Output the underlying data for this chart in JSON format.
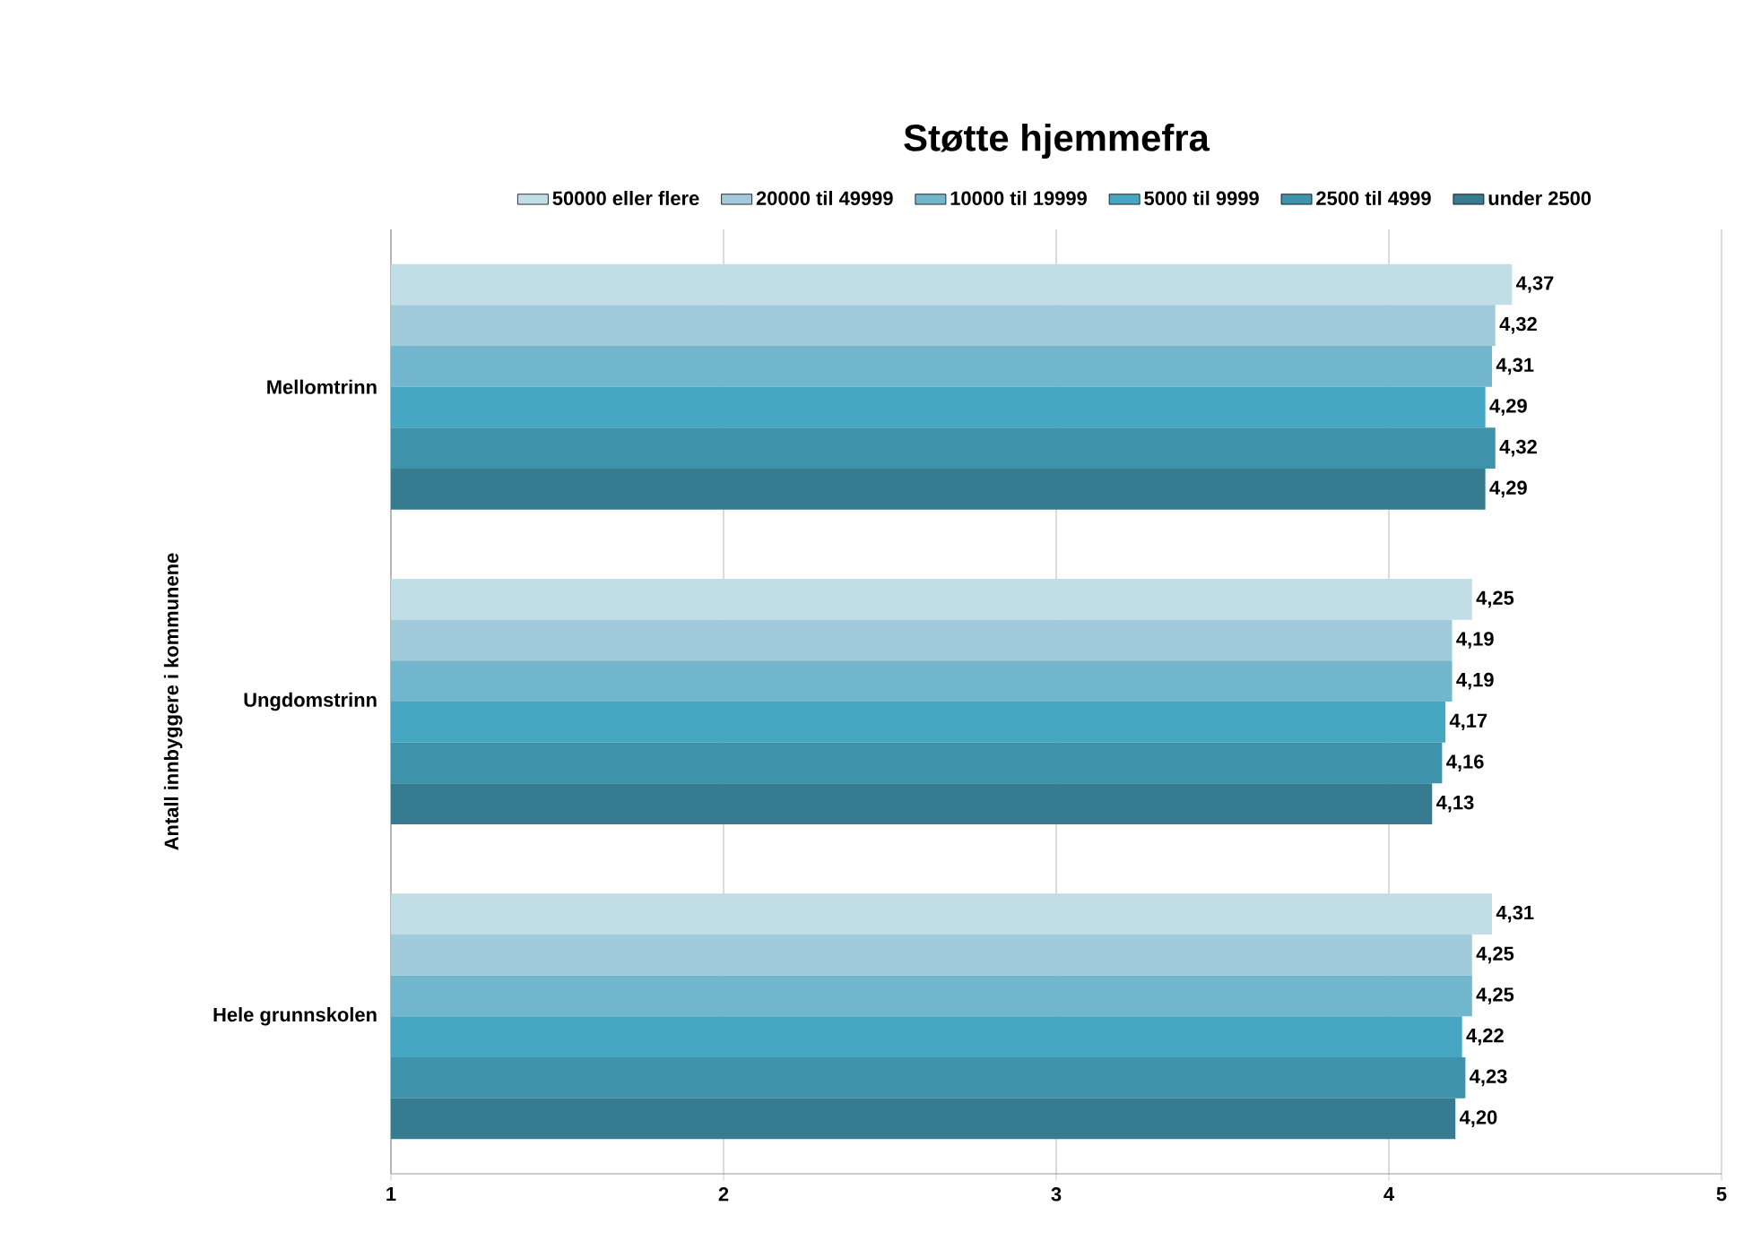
{
  "chart_data": {
    "type": "bar",
    "orientation": "horizontal",
    "title": "Støtte hjemmefra",
    "ylabel": "Antall innbyggere i kommunene",
    "categories": [
      "Mellomtrinn",
      "Ungdomstrinn",
      "Hele grunnskolen"
    ],
    "series": [
      {
        "name": "50000 eller flere",
        "color": "#c1dde6",
        "values": [
          4.37,
          4.25,
          4.31
        ],
        "value_labels": [
          "4,37",
          "4,25",
          "4,31"
        ]
      },
      {
        "name": "20000 til 49999",
        "color": "#a1cadb",
        "values": [
          4.32,
          4.19,
          4.25
        ],
        "value_labels": [
          "4,32",
          "4,19",
          "4,25"
        ]
      },
      {
        "name": "10000 til 19999",
        "color": "#72b6cd",
        "values": [
          4.31,
          4.19,
          4.25
        ],
        "value_labels": [
          "4,31",
          "4,19",
          "4,25"
        ]
      },
      {
        "name": "5000 til 9999",
        "color": "#47a6c1",
        "values": [
          4.29,
          4.17,
          4.22
        ],
        "value_labels": [
          "4,29",
          "4,17",
          "4,22"
        ]
      },
      {
        "name": "2500 til 4999",
        "color": "#3e92a9",
        "values": [
          4.32,
          4.16,
          4.23
        ],
        "value_labels": [
          "4,32",
          "4,16",
          "4,23"
        ]
      },
      {
        "name": "under 2500",
        "color": "#367b90",
        "values": [
          4.29,
          4.13,
          4.2
        ],
        "value_labels": [
          "4,29",
          "4,13",
          "4,20"
        ]
      }
    ],
    "xlim": [
      1,
      5
    ],
    "xticks": [
      1,
      2,
      3,
      4,
      5
    ],
    "grid": "x",
    "legend": "top"
  }
}
